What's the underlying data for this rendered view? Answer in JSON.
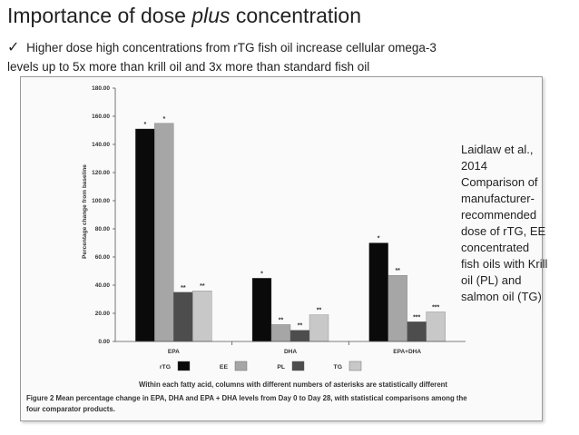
{
  "slide": {
    "title_main": "Importance of dose ",
    "title_emphasis": "plus",
    "title_end": " concentration",
    "bullet_mark": "✓",
    "bullet_line1": "Higher dose high concentrations from rTG fish oil increase cellular omega-3",
    "bullet_line2": "levels up to 5x more than krill oil and 3x more than standard fish oil"
  },
  "side_note": {
    "lines": [
      "Laidlaw et al.,",
      "2014",
      "Comparison of",
      "manufacturer-",
      "recommended",
      "dose of rTG, EE",
      "concentrated",
      "fish oils with Krill",
      "oil (PL) and",
      "salmon oil (TG)"
    ]
  },
  "figure": {
    "note": "Within each fatty acid, columns with different numbers of asterisks are statistically different",
    "caption_line1": "Figure 2 Mean percentage change in EPA, DHA and EPA + DHA levels from Day 0 to Day 28, with statistical comparisons among the",
    "caption_line2": "four comparator products."
  },
  "chart_data": {
    "type": "bar",
    "categories": [
      "EPA",
      "DHA",
      "EPA+DHA"
    ],
    "ylabel": "Percentage change from baseline",
    "ylim": [
      0,
      180
    ],
    "yticks": [
      "0.00",
      "20.00",
      "40.00",
      "60.00",
      "80.00",
      "100.00",
      "120.00",
      "140.00",
      "160.00",
      "180.00"
    ],
    "series": [
      {
        "name": "rTG",
        "color": "#0a0a0a",
        "values": [
          151,
          45,
          70
        ],
        "stars": [
          "*",
          "*",
          "*"
        ]
      },
      {
        "name": "EE",
        "color": "#a6a6a6",
        "values": [
          155,
          12,
          47
        ],
        "stars": [
          "*",
          "**",
          "**"
        ]
      },
      {
        "name": "PL",
        "color": "#4d4d4d",
        "values": [
          35,
          8,
          14
        ],
        "stars": [
          "**",
          "**",
          "***"
        ]
      },
      {
        "name": "TG",
        "color": "#c8c8c8",
        "values": [
          36,
          19,
          21
        ],
        "stars": [
          "**",
          "**",
          "***"
        ]
      }
    ],
    "legend_position": "bottom"
  }
}
